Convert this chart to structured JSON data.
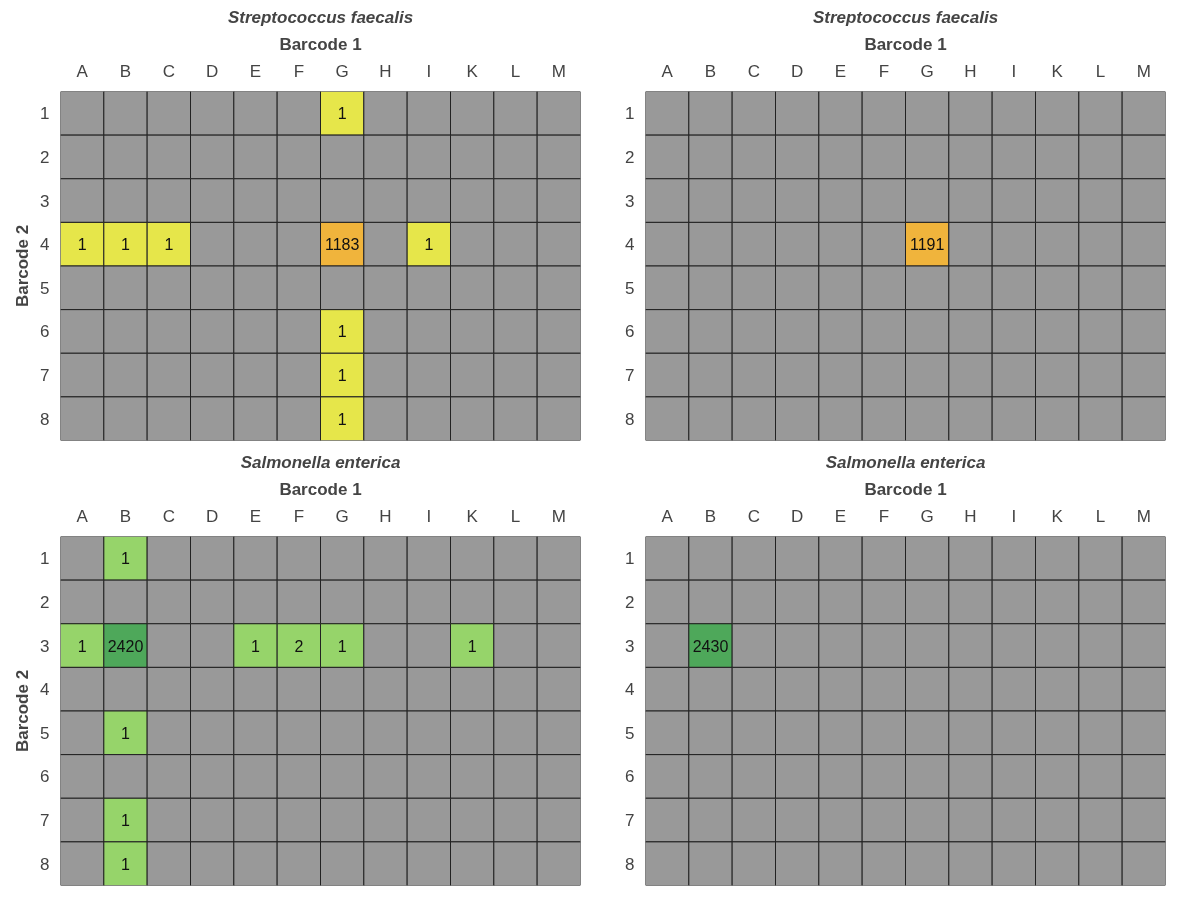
{
  "chart_data": [
    {
      "type": "heatmap",
      "data_labels": true,
      "title": "Streptococcus faecalis",
      "xlabel": "Barcode 1",
      "ylabel": "Barcode 2",
      "categories": [
        "A",
        "B",
        "C",
        "D",
        "E",
        "F",
        "G",
        "H",
        "I",
        "K",
        "L",
        "M"
      ],
      "y_categories": [
        "1",
        "2",
        "3",
        "4",
        "5",
        "6",
        "7",
        "8"
      ],
      "cells": [
        [
          null,
          null,
          null,
          null,
          null,
          null,
          1,
          null,
          null,
          null,
          null,
          null
        ],
        [
          null,
          null,
          null,
          null,
          null,
          null,
          null,
          null,
          null,
          null,
          null,
          null
        ],
        [
          null,
          null,
          null,
          null,
          null,
          null,
          null,
          null,
          null,
          null,
          null,
          null
        ],
        [
          1,
          1,
          1,
          null,
          null,
          null,
          1183,
          null,
          1,
          null,
          null,
          null
        ],
        [
          null,
          null,
          null,
          null,
          null,
          null,
          null,
          null,
          null,
          null,
          null,
          null
        ],
        [
          null,
          null,
          null,
          null,
          null,
          null,
          1,
          null,
          null,
          null,
          null,
          null
        ],
        [
          null,
          null,
          null,
          null,
          null,
          null,
          1,
          null,
          null,
          null,
          null,
          null
        ],
        [
          null,
          null,
          null,
          null,
          null,
          null,
          1,
          null,
          null,
          null,
          null,
          null
        ]
      ],
      "colors": [
        [
          null,
          null,
          null,
          null,
          null,
          null,
          "#e6e64a",
          null,
          null,
          null,
          null,
          null
        ],
        [
          null,
          null,
          null,
          null,
          null,
          null,
          null,
          null,
          null,
          null,
          null,
          null
        ],
        [
          null,
          null,
          null,
          null,
          null,
          null,
          null,
          null,
          null,
          null,
          null,
          null
        ],
        [
          "#e6e64a",
          "#e6e64a",
          "#e6e64a",
          null,
          null,
          null,
          "#f0b43c",
          null,
          "#e6e64a",
          null,
          null,
          null
        ],
        [
          null,
          null,
          null,
          null,
          null,
          null,
          null,
          null,
          null,
          null,
          null,
          null
        ],
        [
          null,
          null,
          null,
          null,
          null,
          null,
          "#e6e64a",
          null,
          null,
          null,
          null,
          null
        ],
        [
          null,
          null,
          null,
          null,
          null,
          null,
          "#e6e64a",
          null,
          null,
          null,
          null,
          null
        ],
        [
          null,
          null,
          null,
          null,
          null,
          null,
          "#e6e64a",
          null,
          null,
          null,
          null,
          null
        ]
      ]
    },
    {
      "type": "heatmap",
      "data_labels": true,
      "title": "Streptococcus faecalis",
      "xlabel": "Barcode 1",
      "categories": [
        "A",
        "B",
        "C",
        "D",
        "E",
        "F",
        "G",
        "H",
        "I",
        "K",
        "L",
        "M"
      ],
      "y_categories": [
        "1",
        "2",
        "3",
        "4",
        "5",
        "6",
        "7",
        "8"
      ],
      "cells": [
        [
          null,
          null,
          null,
          null,
          null,
          null,
          null,
          null,
          null,
          null,
          null,
          null
        ],
        [
          null,
          null,
          null,
          null,
          null,
          null,
          null,
          null,
          null,
          null,
          null,
          null
        ],
        [
          null,
          null,
          null,
          null,
          null,
          null,
          null,
          null,
          null,
          null,
          null,
          null
        ],
        [
          null,
          null,
          null,
          null,
          null,
          null,
          1191,
          null,
          null,
          null,
          null,
          null
        ],
        [
          null,
          null,
          null,
          null,
          null,
          null,
          null,
          null,
          null,
          null,
          null,
          null
        ],
        [
          null,
          null,
          null,
          null,
          null,
          null,
          null,
          null,
          null,
          null,
          null,
          null
        ],
        [
          null,
          null,
          null,
          null,
          null,
          null,
          null,
          null,
          null,
          null,
          null,
          null
        ],
        [
          null,
          null,
          null,
          null,
          null,
          null,
          null,
          null,
          null,
          null,
          null,
          null
        ]
      ],
      "colors": [
        [
          null,
          null,
          null,
          null,
          null,
          null,
          null,
          null,
          null,
          null,
          null,
          null
        ],
        [
          null,
          null,
          null,
          null,
          null,
          null,
          null,
          null,
          null,
          null,
          null,
          null
        ],
        [
          null,
          null,
          null,
          null,
          null,
          null,
          null,
          null,
          null,
          null,
          null,
          null
        ],
        [
          null,
          null,
          null,
          null,
          null,
          null,
          "#f0b43c",
          null,
          null,
          null,
          null,
          null
        ],
        [
          null,
          null,
          null,
          null,
          null,
          null,
          null,
          null,
          null,
          null,
          null,
          null
        ],
        [
          null,
          null,
          null,
          null,
          null,
          null,
          null,
          null,
          null,
          null,
          null,
          null
        ],
        [
          null,
          null,
          null,
          null,
          null,
          null,
          null,
          null,
          null,
          null,
          null,
          null
        ],
        [
          null,
          null,
          null,
          null,
          null,
          null,
          null,
          null,
          null,
          null,
          null,
          null
        ]
      ]
    },
    {
      "type": "heatmap",
      "data_labels": true,
      "title": "Salmonella enterica",
      "xlabel": "Barcode 1",
      "ylabel": "Barcode 2",
      "categories": [
        "A",
        "B",
        "C",
        "D",
        "E",
        "F",
        "G",
        "H",
        "I",
        "K",
        "L",
        "M"
      ],
      "y_categories": [
        "1",
        "2",
        "3",
        "4",
        "5",
        "6",
        "7",
        "8"
      ],
      "cells": [
        [
          null,
          1,
          null,
          null,
          null,
          null,
          null,
          null,
          null,
          null,
          null,
          null
        ],
        [
          null,
          null,
          null,
          null,
          null,
          null,
          null,
          null,
          null,
          null,
          null,
          null
        ],
        [
          1,
          2420,
          null,
          null,
          1,
          2,
          1,
          null,
          null,
          1,
          null,
          null
        ],
        [
          null,
          null,
          null,
          null,
          null,
          null,
          null,
          null,
          null,
          null,
          null,
          null
        ],
        [
          null,
          1,
          null,
          null,
          null,
          null,
          null,
          null,
          null,
          null,
          null,
          null
        ],
        [
          null,
          null,
          null,
          null,
          null,
          null,
          null,
          null,
          null,
          null,
          null,
          null
        ],
        [
          null,
          1,
          null,
          null,
          null,
          null,
          null,
          null,
          null,
          null,
          null,
          null
        ],
        [
          null,
          1,
          null,
          null,
          null,
          null,
          null,
          null,
          null,
          null,
          null,
          null
        ]
      ],
      "colors": [
        [
          null,
          "#96d46a",
          null,
          null,
          null,
          null,
          null,
          null,
          null,
          null,
          null,
          null
        ],
        [
          null,
          null,
          null,
          null,
          null,
          null,
          null,
          null,
          null,
          null,
          null,
          null
        ],
        [
          "#96d46a",
          "#4ea85a",
          null,
          null,
          "#96d46a",
          "#96d46a",
          "#96d46a",
          null,
          null,
          "#96d46a",
          null,
          null
        ],
        [
          null,
          null,
          null,
          null,
          null,
          null,
          null,
          null,
          null,
          null,
          null,
          null
        ],
        [
          null,
          "#96d46a",
          null,
          null,
          null,
          null,
          null,
          null,
          null,
          null,
          null,
          null
        ],
        [
          null,
          null,
          null,
          null,
          null,
          null,
          null,
          null,
          null,
          null,
          null,
          null
        ],
        [
          null,
          "#96d46a",
          null,
          null,
          null,
          null,
          null,
          null,
          null,
          null,
          null,
          null
        ],
        [
          null,
          "#96d46a",
          null,
          null,
          null,
          null,
          null,
          null,
          null,
          null,
          null,
          null
        ]
      ]
    },
    {
      "type": "heatmap",
      "data_labels": true,
      "title": "Salmonella enterica",
      "xlabel": "Barcode 1",
      "categories": [
        "A",
        "B",
        "C",
        "D",
        "E",
        "F",
        "G",
        "H",
        "I",
        "K",
        "L",
        "M"
      ],
      "y_categories": [
        "1",
        "2",
        "3",
        "4",
        "5",
        "6",
        "7",
        "8"
      ],
      "cells": [
        [
          null,
          null,
          null,
          null,
          null,
          null,
          null,
          null,
          null,
          null,
          null,
          null
        ],
        [
          null,
          null,
          null,
          null,
          null,
          null,
          null,
          null,
          null,
          null,
          null,
          null
        ],
        [
          null,
          2430,
          null,
          null,
          null,
          null,
          null,
          null,
          null,
          null,
          null,
          null
        ],
        [
          null,
          null,
          null,
          null,
          null,
          null,
          null,
          null,
          null,
          null,
          null,
          null
        ],
        [
          null,
          null,
          null,
          null,
          null,
          null,
          null,
          null,
          null,
          null,
          null,
          null
        ],
        [
          null,
          null,
          null,
          null,
          null,
          null,
          null,
          null,
          null,
          null,
          null,
          null
        ],
        [
          null,
          null,
          null,
          null,
          null,
          null,
          null,
          null,
          null,
          null,
          null,
          null
        ],
        [
          null,
          null,
          null,
          null,
          null,
          null,
          null,
          null,
          null,
          null,
          null,
          null
        ]
      ],
      "colors": [
        [
          null,
          null,
          null,
          null,
          null,
          null,
          null,
          null,
          null,
          null,
          null,
          null
        ],
        [
          null,
          null,
          null,
          null,
          null,
          null,
          null,
          null,
          null,
          null,
          null,
          null
        ],
        [
          null,
          "#4ea85a",
          null,
          null,
          null,
          null,
          null,
          null,
          null,
          null,
          null,
          null
        ],
        [
          null,
          null,
          null,
          null,
          null,
          null,
          null,
          null,
          null,
          null,
          null,
          null
        ],
        [
          null,
          null,
          null,
          null,
          null,
          null,
          null,
          null,
          null,
          null,
          null,
          null
        ],
        [
          null,
          null,
          null,
          null,
          null,
          null,
          null,
          null,
          null,
          null,
          null,
          null
        ],
        [
          null,
          null,
          null,
          null,
          null,
          null,
          null,
          null,
          null,
          null,
          null,
          null
        ],
        [
          null,
          null,
          null,
          null,
          null,
          null,
          null,
          null,
          null,
          null,
          null,
          null
        ]
      ]
    }
  ]
}
